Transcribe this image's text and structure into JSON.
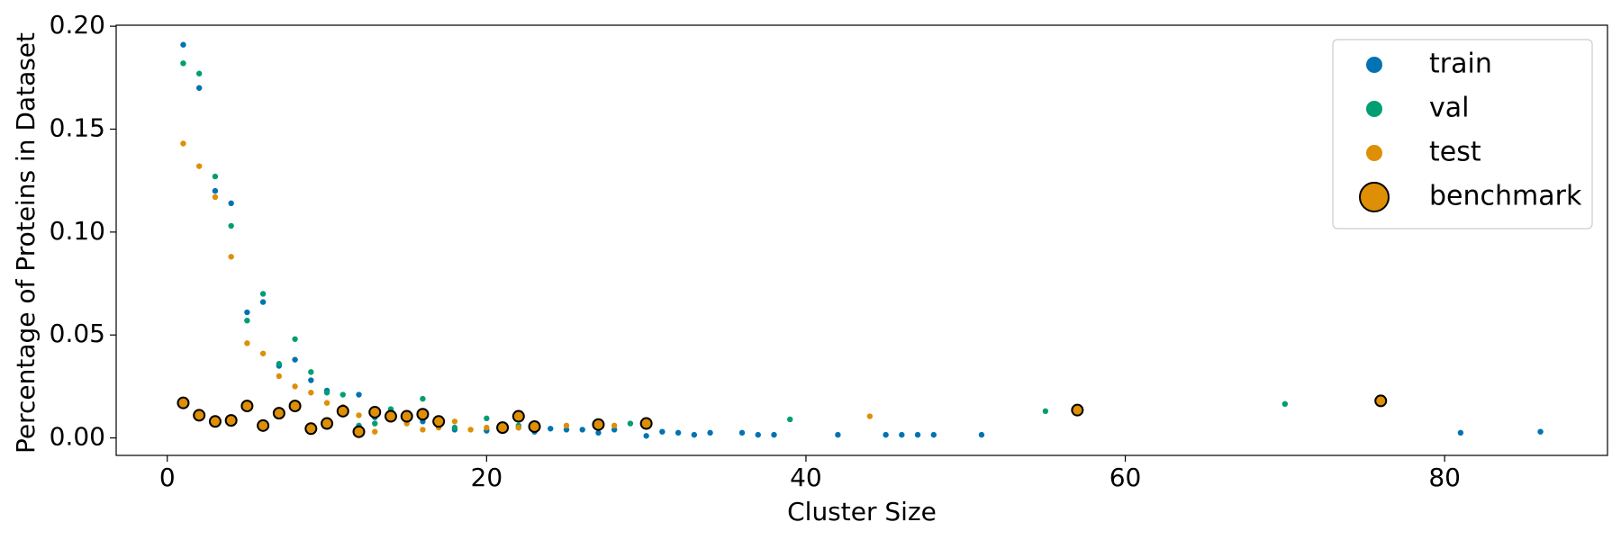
{
  "chart_data": {
    "type": "scatter",
    "xlabel": "Cluster Size",
    "ylabel": "Percentage of Proteins in Dataset",
    "xlim": [
      -3.2,
      90.2
    ],
    "ylim": [
      -0.0085,
      0.2005
    ],
    "xticks": [
      0,
      20,
      40,
      60,
      80
    ],
    "yticks": [
      {
        "value": 0,
        "label": "0.00"
      },
      {
        "value": 0.05,
        "label": "0.05"
      },
      {
        "value": 0.1,
        "label": "0.10"
      },
      {
        "value": 0.15,
        "label": "0.15"
      },
      {
        "value": 0.2,
        "label": "0.20"
      }
    ],
    "legend": "upper right",
    "series": [
      {
        "name": "train",
        "color": "#0173b2",
        "x": [
          1,
          2,
          3,
          4,
          5,
          6,
          7,
          8,
          9,
          10,
          12,
          13,
          14,
          15,
          16,
          17,
          18,
          20,
          22,
          23,
          24,
          25,
          26,
          27,
          28,
          30,
          31,
          32,
          33,
          34,
          36,
          37,
          38,
          42,
          45,
          46,
          47,
          48,
          51,
          81,
          86
        ],
        "values": [
          0.191,
          0.17,
          0.12,
          0.114,
          0.061,
          0.066,
          0.035,
          0.038,
          0.028,
          0.023,
          0.021,
          0.01,
          0.013,
          0.01,
          0.008,
          0.007,
          0.004,
          0.0035,
          0.005,
          0.003,
          0.0045,
          0.004,
          0.004,
          0.0025,
          0.004,
          0.001,
          0.003,
          0.0025,
          0.0015,
          0.0025,
          0.0025,
          0.0015,
          0.0015,
          0.0015,
          0.0015,
          0.0015,
          0.0015,
          0.0015,
          0.0015,
          0.0025,
          0.003
        ]
      },
      {
        "name": "val",
        "color": "#029e73",
        "x": [
          1,
          2,
          3,
          4,
          5,
          6,
          7,
          8,
          9,
          10,
          11,
          12,
          13,
          14,
          16,
          17,
          18,
          20,
          22,
          29,
          39,
          55,
          70
        ],
        "values": [
          0.182,
          0.177,
          0.127,
          0.103,
          0.057,
          0.07,
          0.036,
          0.048,
          0.032,
          0.022,
          0.021,
          0.006,
          0.007,
          0.014,
          0.019,
          0.008,
          0.005,
          0.0095,
          0.006,
          0.007,
          0.009,
          0.013,
          0.0165
        ]
      },
      {
        "name": "test",
        "color": "#de8f05",
        "x": [
          1,
          2,
          3,
          4,
          5,
          6,
          7,
          8,
          9,
          10,
          11,
          12,
          13,
          15,
          16,
          17,
          18,
          19,
          20,
          22,
          25,
          28,
          44
        ],
        "values": [
          0.143,
          0.132,
          0.117,
          0.088,
          0.046,
          0.041,
          0.03,
          0.025,
          0.022,
          0.017,
          0.015,
          0.011,
          0.003,
          0.007,
          0.004,
          0.005,
          0.008,
          0.004,
          0.005,
          0.005,
          0.006,
          0.006,
          0.0105
        ]
      },
      {
        "name": "benchmark",
        "color": "#de8f05",
        "edgecolor": "#000000",
        "x": [
          1,
          2,
          3,
          4,
          5,
          6,
          7,
          8,
          9,
          10,
          11,
          12,
          13,
          14,
          15,
          16,
          17,
          21,
          22,
          23,
          27,
          30,
          57,
          76
        ],
        "values": [
          0.017,
          0.011,
          0.008,
          0.0085,
          0.0155,
          0.006,
          0.012,
          0.0155,
          0.0045,
          0.007,
          0.013,
          0.003,
          0.0125,
          0.0105,
          0.0105,
          0.0115,
          0.008,
          0.005,
          0.0105,
          0.0055,
          0.0065,
          0.007,
          0.0135,
          0.018
        ]
      }
    ]
  }
}
